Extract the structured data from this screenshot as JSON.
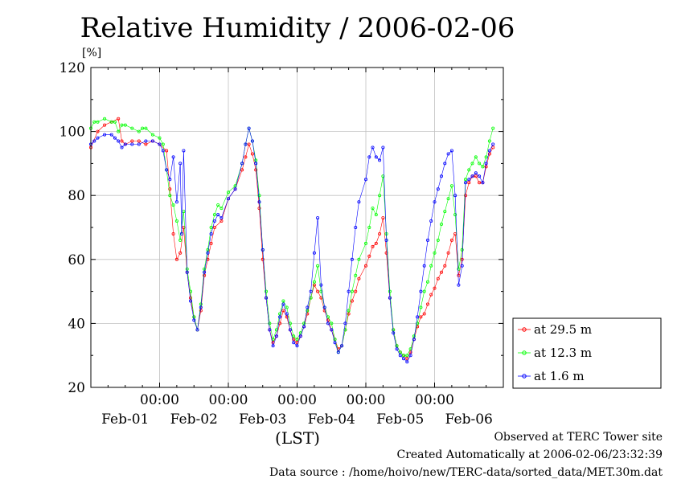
{
  "chart_data": {
    "type": "line",
    "title": "Relative Humidity / 2006-02-06",
    "ylabel": "[%]",
    "xlabel": "(LST)",
    "ylim": [
      20,
      120
    ],
    "yticks": [
      20,
      40,
      60,
      80,
      100,
      120
    ],
    "xlim": [
      0,
      6
    ],
    "x_unit": "days since Feb-01 00:00",
    "hour_ticks": [
      {
        "x": 1,
        "label": "00:00"
      },
      {
        "x": 2,
        "label": "00:00"
      },
      {
        "x": 3,
        "label": "00:00"
      },
      {
        "x": 4,
        "label": "00:00"
      },
      {
        "x": 5,
        "label": "00:00"
      }
    ],
    "date_labels": [
      {
        "x": 0.5,
        "label": "Feb-01"
      },
      {
        "x": 1.5,
        "label": "Feb-02"
      },
      {
        "x": 2.5,
        "label": "Feb-03"
      },
      {
        "x": 3.5,
        "label": "Feb-04"
      },
      {
        "x": 4.5,
        "label": "Feb-05"
      },
      {
        "x": 5.5,
        "label": "Feb-06"
      }
    ],
    "grid": true,
    "legend_position": "right-bottom",
    "series": [
      {
        "name": "at 29.5 m",
        "color": "#ff0000",
        "points": [
          [
            0,
            95
          ],
          [
            0.1,
            100
          ],
          [
            0.2,
            102
          ],
          [
            0.3,
            103
          ],
          [
            0.4,
            104
          ],
          [
            0.45,
            97
          ],
          [
            0.5,
            96
          ],
          [
            0.6,
            97
          ],
          [
            0.7,
            97
          ],
          [
            0.8,
            96
          ],
          [
            0.9,
            97
          ],
          [
            1.0,
            96
          ],
          [
            1.1,
            94
          ],
          [
            1.15,
            82
          ],
          [
            1.2,
            68
          ],
          [
            1.25,
            60
          ],
          [
            1.3,
            62
          ],
          [
            1.35,
            70
          ],
          [
            1.4,
            56
          ],
          [
            1.45,
            48
          ],
          [
            1.5,
            42
          ],
          [
            1.55,
            38
          ],
          [
            1.6,
            44
          ],
          [
            1.65,
            55
          ],
          [
            1.7,
            60
          ],
          [
            1.75,
            65
          ],
          [
            1.8,
            70
          ],
          [
            1.9,
            72
          ],
          [
            2.0,
            79
          ],
          [
            2.1,
            82
          ],
          [
            2.2,
            88
          ],
          [
            2.25,
            92
          ],
          [
            2.3,
            96
          ],
          [
            2.35,
            93
          ],
          [
            2.4,
            88
          ],
          [
            2.45,
            76
          ],
          [
            2.5,
            60
          ],
          [
            2.55,
            48
          ],
          [
            2.6,
            38
          ],
          [
            2.65,
            34
          ],
          [
            2.7,
            36
          ],
          [
            2.75,
            40
          ],
          [
            2.8,
            44
          ],
          [
            2.85,
            42
          ],
          [
            2.9,
            38
          ],
          [
            2.95,
            35
          ],
          [
            3.0,
            34
          ],
          [
            3.05,
            36
          ],
          [
            3.1,
            39
          ],
          [
            3.15,
            43
          ],
          [
            3.2,
            48
          ],
          [
            3.25,
            52
          ],
          [
            3.3,
            50
          ],
          [
            3.35,
            48
          ],
          [
            3.4,
            44
          ],
          [
            3.45,
            41
          ],
          [
            3.5,
            38
          ],
          [
            3.55,
            35
          ],
          [
            3.6,
            32
          ],
          [
            3.65,
            33
          ],
          [
            3.7,
            38
          ],
          [
            3.75,
            43
          ],
          [
            3.8,
            47
          ],
          [
            3.85,
            50
          ],
          [
            3.9,
            54
          ],
          [
            4.0,
            58
          ],
          [
            4.05,
            61
          ],
          [
            4.1,
            64
          ],
          [
            4.15,
            65
          ],
          [
            4.2,
            68
          ],
          [
            4.25,
            73
          ],
          [
            4.3,
            62
          ],
          [
            4.35,
            48
          ],
          [
            4.4,
            38
          ],
          [
            4.45,
            33
          ],
          [
            4.5,
            31
          ],
          [
            4.55,
            30
          ],
          [
            4.6,
            29
          ],
          [
            4.65,
            31
          ],
          [
            4.7,
            35
          ],
          [
            4.75,
            39
          ],
          [
            4.8,
            42
          ],
          [
            4.85,
            43
          ],
          [
            4.9,
            46
          ],
          [
            4.95,
            49
          ],
          [
            5.0,
            51
          ],
          [
            5.05,
            54
          ],
          [
            5.1,
            56
          ],
          [
            5.15,
            58
          ],
          [
            5.2,
            62
          ],
          [
            5.25,
            66
          ],
          [
            5.3,
            68
          ],
          [
            5.35,
            55
          ],
          [
            5.4,
            60
          ],
          [
            5.45,
            80
          ],
          [
            5.5,
            84
          ],
          [
            5.55,
            86
          ],
          [
            5.6,
            86
          ],
          [
            5.65,
            84
          ],
          [
            5.7,
            84
          ],
          [
            5.75,
            89
          ],
          [
            5.8,
            93
          ],
          [
            5.85,
            95
          ]
        ]
      },
      {
        "name": "at 12.3 m",
        "color": "#00ff00",
        "points": [
          [
            0,
            101
          ],
          [
            0.05,
            103
          ],
          [
            0.1,
            103
          ],
          [
            0.2,
            104
          ],
          [
            0.3,
            103
          ],
          [
            0.35,
            103
          ],
          [
            0.4,
            100
          ],
          [
            0.45,
            102
          ],
          [
            0.5,
            102
          ],
          [
            0.6,
            101
          ],
          [
            0.7,
            100
          ],
          [
            0.75,
            101
          ],
          [
            0.8,
            101
          ],
          [
            0.9,
            99
          ],
          [
            1.0,
            98
          ],
          [
            1.05,
            96
          ],
          [
            1.1,
            88
          ],
          [
            1.15,
            80
          ],
          [
            1.2,
            77
          ],
          [
            1.25,
            72
          ],
          [
            1.3,
            66
          ],
          [
            1.35,
            75
          ],
          [
            1.4,
            57
          ],
          [
            1.45,
            50
          ],
          [
            1.5,
            42
          ],
          [
            1.55,
            38
          ],
          [
            1.6,
            46
          ],
          [
            1.65,
            57
          ],
          [
            1.7,
            63
          ],
          [
            1.75,
            70
          ],
          [
            1.8,
            74
          ],
          [
            1.85,
            77
          ],
          [
            1.9,
            76
          ],
          [
            2.0,
            81
          ],
          [
            2.1,
            83
          ],
          [
            2.2,
            90
          ],
          [
            2.25,
            96
          ],
          [
            2.3,
            101
          ],
          [
            2.35,
            97
          ],
          [
            2.4,
            91
          ],
          [
            2.45,
            80
          ],
          [
            2.5,
            63
          ],
          [
            2.55,
            50
          ],
          [
            2.6,
            40
          ],
          [
            2.65,
            35
          ],
          [
            2.7,
            38
          ],
          [
            2.75,
            43
          ],
          [
            2.8,
            47
          ],
          [
            2.85,
            45
          ],
          [
            2.9,
            40
          ],
          [
            2.95,
            36
          ],
          [
            3.0,
            35
          ],
          [
            3.05,
            37
          ],
          [
            3.1,
            40
          ],
          [
            3.15,
            44
          ],
          [
            3.2,
            48
          ],
          [
            3.25,
            53
          ],
          [
            3.3,
            58
          ],
          [
            3.35,
            50
          ],
          [
            3.4,
            45
          ],
          [
            3.45,
            42
          ],
          [
            3.5,
            40
          ],
          [
            3.55,
            35
          ],
          [
            3.6,
            31
          ],
          [
            3.65,
            33
          ],
          [
            3.7,
            38
          ],
          [
            3.75,
            44
          ],
          [
            3.8,
            50
          ],
          [
            3.85,
            55
          ],
          [
            3.9,
            60
          ],
          [
            4.0,
            65
          ],
          [
            4.05,
            70
          ],
          [
            4.1,
            76
          ],
          [
            4.15,
            74
          ],
          [
            4.2,
            80
          ],
          [
            4.25,
            86
          ],
          [
            4.3,
            68
          ],
          [
            4.35,
            50
          ],
          [
            4.4,
            38
          ],
          [
            4.45,
            33
          ],
          [
            4.5,
            31
          ],
          [
            4.55,
            30
          ],
          [
            4.6,
            30
          ],
          [
            4.65,
            32
          ],
          [
            4.7,
            36
          ],
          [
            4.75,
            40
          ],
          [
            4.8,
            45
          ],
          [
            4.85,
            50
          ],
          [
            4.9,
            53
          ],
          [
            4.95,
            58
          ],
          [
            5.0,
            62
          ],
          [
            5.05,
            66
          ],
          [
            5.1,
            71
          ],
          [
            5.15,
            75
          ],
          [
            5.2,
            79
          ],
          [
            5.25,
            83
          ],
          [
            5.3,
            74
          ],
          [
            5.35,
            57
          ],
          [
            5.4,
            63
          ],
          [
            5.45,
            85
          ],
          [
            5.5,
            88
          ],
          [
            5.55,
            90
          ],
          [
            5.6,
            92
          ],
          [
            5.65,
            90
          ],
          [
            5.7,
            89
          ],
          [
            5.75,
            92
          ],
          [
            5.8,
            97
          ],
          [
            5.85,
            101
          ]
        ]
      },
      {
        "name": "at 1.6 m",
        "color": "#0000ff",
        "points": [
          [
            0,
            96
          ],
          [
            0.05,
            97
          ],
          [
            0.1,
            98
          ],
          [
            0.2,
            99
          ],
          [
            0.3,
            99
          ],
          [
            0.35,
            98
          ],
          [
            0.4,
            97
          ],
          [
            0.45,
            95
          ],
          [
            0.5,
            96
          ],
          [
            0.6,
            96
          ],
          [
            0.7,
            96
          ],
          [
            0.8,
            97
          ],
          [
            0.9,
            97
          ],
          [
            1.0,
            96
          ],
          [
            1.05,
            94
          ],
          [
            1.1,
            88
          ],
          [
            1.15,
            85
          ],
          [
            1.2,
            92
          ],
          [
            1.25,
            78
          ],
          [
            1.3,
            90
          ],
          [
            1.32,
            68
          ],
          [
            1.35,
            94
          ],
          [
            1.4,
            56
          ],
          [
            1.45,
            47
          ],
          [
            1.5,
            41
          ],
          [
            1.55,
            38
          ],
          [
            1.6,
            45
          ],
          [
            1.65,
            56
          ],
          [
            1.7,
            62
          ],
          [
            1.75,
            68
          ],
          [
            1.8,
            72
          ],
          [
            1.85,
            74
          ],
          [
            1.9,
            73
          ],
          [
            2.0,
            79
          ],
          [
            2.1,
            82
          ],
          [
            2.2,
            90
          ],
          [
            2.25,
            96
          ],
          [
            2.3,
            101
          ],
          [
            2.35,
            97
          ],
          [
            2.4,
            90
          ],
          [
            2.45,
            78
          ],
          [
            2.5,
            63
          ],
          [
            2.55,
            48
          ],
          [
            2.6,
            38
          ],
          [
            2.65,
            33
          ],
          [
            2.7,
            36
          ],
          [
            2.75,
            42
          ],
          [
            2.8,
            46
          ],
          [
            2.85,
            43
          ],
          [
            2.9,
            38
          ],
          [
            2.95,
            34
          ],
          [
            3.0,
            33
          ],
          [
            3.05,
            36
          ],
          [
            3.1,
            39
          ],
          [
            3.15,
            45
          ],
          [
            3.2,
            50
          ],
          [
            3.25,
            62
          ],
          [
            3.3,
            73
          ],
          [
            3.35,
            52
          ],
          [
            3.4,
            45
          ],
          [
            3.45,
            40
          ],
          [
            3.5,
            38
          ],
          [
            3.55,
            34
          ],
          [
            3.6,
            31
          ],
          [
            3.65,
            33
          ],
          [
            3.7,
            40
          ],
          [
            3.75,
            50
          ],
          [
            3.8,
            60
          ],
          [
            3.85,
            70
          ],
          [
            3.9,
            78
          ],
          [
            4.0,
            85
          ],
          [
            4.05,
            92
          ],
          [
            4.1,
            95
          ],
          [
            4.15,
            92
          ],
          [
            4.2,
            91
          ],
          [
            4.25,
            95
          ],
          [
            4.3,
            66
          ],
          [
            4.35,
            48
          ],
          [
            4.4,
            37
          ],
          [
            4.45,
            32
          ],
          [
            4.5,
            30
          ],
          [
            4.55,
            29
          ],
          [
            4.6,
            28
          ],
          [
            4.65,
            30
          ],
          [
            4.7,
            35
          ],
          [
            4.75,
            42
          ],
          [
            4.8,
            50
          ],
          [
            4.85,
            58
          ],
          [
            4.9,
            66
          ],
          [
            4.95,
            72
          ],
          [
            5.0,
            78
          ],
          [
            5.05,
            82
          ],
          [
            5.1,
            86
          ],
          [
            5.15,
            90
          ],
          [
            5.2,
            93
          ],
          [
            5.25,
            94
          ],
          [
            5.3,
            80
          ],
          [
            5.35,
            52
          ],
          [
            5.4,
            58
          ],
          [
            5.45,
            84
          ],
          [
            5.5,
            85
          ],
          [
            5.55,
            86
          ],
          [
            5.6,
            87
          ],
          [
            5.65,
            86
          ],
          [
            5.7,
            84
          ],
          [
            5.75,
            90
          ],
          [
            5.8,
            94
          ],
          [
            5.85,
            96
          ]
        ]
      }
    ]
  },
  "footer": {
    "observed": "Observed at TERC Tower site",
    "created": "Created Automatically at 2006-02-06/23:32:39",
    "source": "Data source : /home/hoivo/new/TERC-data/sorted_data/MET.30m.dat"
  }
}
